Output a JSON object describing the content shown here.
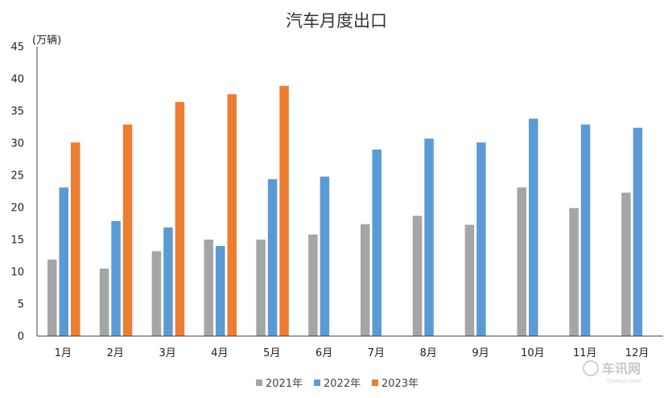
{
  "chart_data": {
    "type": "bar",
    "title": "汽车月度出口",
    "ylabel": "(万辆)",
    "xlabel": "",
    "ylim": [
      0,
      45
    ],
    "yticks": [
      0,
      5,
      10,
      15,
      20,
      25,
      30,
      35,
      40,
      45
    ],
    "grid": false,
    "legend_position": "bottom",
    "categories": [
      "1月",
      "2月",
      "3月",
      "4月",
      "5月",
      "6月",
      "7月",
      "8月",
      "9月",
      "10月",
      "11月",
      "12月"
    ],
    "series": [
      {
        "name": "2021年",
        "color": "#a5a5a5",
        "values": [
          11.9,
          10.5,
          13.2,
          15.0,
          15.0,
          15.8,
          17.4,
          18.7,
          17.3,
          23.1,
          19.9,
          22.3
        ]
      },
      {
        "name": "2022年",
        "color": "#5b9bd5",
        "values": [
          23.1,
          17.9,
          16.9,
          14.0,
          24.4,
          24.8,
          29.0,
          30.7,
          30.1,
          33.8,
          32.9,
          32.4
        ]
      },
      {
        "name": "2023年",
        "color": "#ed7d31",
        "values": [
          30.1,
          32.9,
          36.4,
          37.6,
          38.9,
          null,
          null,
          null,
          null,
          null,
          null,
          null
        ]
      }
    ]
  },
  "watermark": {
    "text": "车讯网",
    "subtext": "chexun.com"
  }
}
